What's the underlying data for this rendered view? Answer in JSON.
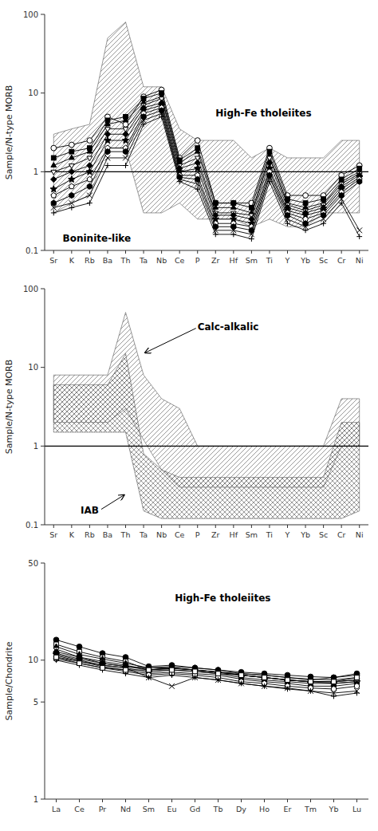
{
  "chart_data": [
    {
      "type": "line",
      "y_label": "Sample/N-type MORB",
      "categories": [
        "Sr",
        "K",
        "Rb",
        "Ba",
        "Th",
        "Ta",
        "Nb",
        "Ce",
        "P",
        "Zr",
        "Hf",
        "Sm",
        "Ti",
        "Y",
        "Yb",
        "Sc",
        "Cr",
        "Ni"
      ],
      "log": "y",
      "grid": false,
      "color": "#000000",
      "ylim": [
        0.1,
        100
      ],
      "yticks": [
        0.1,
        1,
        10,
        100
      ],
      "reference_line": 1,
      "annotations": [
        {
          "text": "High-Fe tholeiites"
        },
        {
          "text": "Boninite-like"
        }
      ],
      "series": [
        {
          "type": "band",
          "line_style": "hatch-diagonal",
          "color": "#555555",
          "values": [
            3.0,
            3.5,
            4.0,
            50.0,
            80.0,
            12.0,
            12.0,
            3.5,
            2.5,
            2.5,
            2.5,
            1.5,
            2.0,
            1.5,
            1.5,
            1.5,
            2.5,
            2.5
          ],
          "lower": [
            0.3,
            0.4,
            0.5,
            2.0,
            2.0,
            0.3,
            0.3,
            0.4,
            0.25,
            0.25,
            0.25,
            0.2,
            0.25,
            0.2,
            0.2,
            0.3,
            0.3,
            0.3
          ]
        },
        {
          "marker": "circle-open",
          "values": [
            2.0,
            2.2,
            2.5,
            5.0,
            4.0,
            9.0,
            11.0,
            1.5,
            2.5,
            0.4,
            0.4,
            0.4,
            2.0,
            0.5,
            0.5,
            0.5,
            0.9,
            1.2
          ]
        },
        {
          "marker": "square",
          "values": [
            1.5,
            1.8,
            2.0,
            4.5,
            5.0,
            8.5,
            10.0,
            1.4,
            2.0,
            0.4,
            0.4,
            0.35,
            1.8,
            0.45,
            0.4,
            0.45,
            0.8,
            1.1
          ]
        },
        {
          "marker": "triangle-up",
          "values": [
            1.2,
            1.5,
            1.8,
            4.0,
            4.5,
            7.5,
            9.0,
            1.3,
            1.8,
            0.35,
            0.35,
            0.3,
            1.6,
            0.4,
            0.35,
            0.4,
            0.75,
            1.0
          ]
        },
        {
          "marker": "triangle-down-open",
          "values": [
            1.0,
            1.2,
            1.5,
            3.5,
            3.5,
            7.0,
            8.5,
            1.2,
            1.5,
            0.3,
            0.3,
            0.28,
            1.5,
            0.38,
            0.32,
            0.38,
            0.7,
            0.95
          ]
        },
        {
          "marker": "diamond",
          "values": [
            0.8,
            1.0,
            1.2,
            3.0,
            3.0,
            6.5,
            7.5,
            1.1,
            1.3,
            0.28,
            0.28,
            0.25,
            1.3,
            0.35,
            0.3,
            0.35,
            0.65,
            0.9
          ]
        },
        {
          "marker": "star",
          "values": [
            0.6,
            0.8,
            1.0,
            2.5,
            2.5,
            6.0,
            7.0,
            1.0,
            1.1,
            0.25,
            0.25,
            0.22,
            1.1,
            0.32,
            0.28,
            0.32,
            0.6,
            0.85
          ]
        },
        {
          "marker": "pentagon-open",
          "values": [
            0.5,
            0.65,
            0.8,
            2.0,
            2.0,
            5.5,
            6.5,
            0.9,
            0.9,
            0.22,
            0.22,
            0.2,
            1.0,
            0.3,
            0.25,
            0.3,
            0.55,
            0.8
          ]
        },
        {
          "marker": "hexagon",
          "values": [
            0.4,
            0.5,
            0.65,
            1.8,
            1.8,
            5.0,
            6.0,
            0.85,
            0.8,
            0.2,
            0.2,
            0.18,
            0.9,
            0.28,
            0.22,
            0.28,
            0.5,
            0.75
          ]
        },
        {
          "marker": "x",
          "values": [
            0.35,
            0.4,
            0.5,
            1.5,
            1.5,
            4.5,
            5.5,
            0.8,
            0.7,
            0.18,
            0.18,
            0.16,
            0.85,
            0.25,
            0.2,
            0.25,
            0.45,
            0.18
          ]
        },
        {
          "marker": "plus",
          "values": [
            0.3,
            0.35,
            0.4,
            1.2,
            1.2,
            4.0,
            5.0,
            0.75,
            0.6,
            0.16,
            0.16,
            0.14,
            0.75,
            0.22,
            0.18,
            0.22,
            0.4,
            0.15
          ]
        }
      ]
    },
    {
      "type": "line",
      "y_label": "Sample/N-type MORB",
      "categories": [
        "Sr",
        "K",
        "Rb",
        "Ba",
        "Th",
        "Ta",
        "Nb",
        "Ce",
        "P",
        "Zr",
        "Hf",
        "Sm",
        "Ti",
        "Y",
        "Yb",
        "Sc",
        "Cr",
        "Ni"
      ],
      "log": "y",
      "grid": false,
      "color": "#000000",
      "ylim": [
        0.1,
        100
      ],
      "yticks": [
        0.1,
        1,
        10,
        100
      ],
      "reference_line": 1,
      "annotations": [
        {
          "text": "Calc-alkalic"
        },
        {
          "text": "IAB"
        }
      ],
      "series": [
        {
          "type": "band",
          "line_style": "hatch-diagonal",
          "color": "#555555",
          "values": [
            8.0,
            8.0,
            8.0,
            8.0,
            50.0,
            8.0,
            4.0,
            3.0,
            1.0,
            1.0,
            1.0,
            1.0,
            1.0,
            1.0,
            1.0,
            1.0,
            4.0,
            4.0
          ],
          "lower": [
            2.0,
            2.0,
            2.0,
            2.0,
            3.0,
            1.2,
            0.5,
            0.3,
            0.3,
            0.3,
            0.3,
            0.3,
            0.3,
            0.3,
            0.3,
            0.3,
            1.0,
            1.0
          ]
        },
        {
          "type": "band",
          "line_style": "hatch-cross",
          "color": "#555555",
          "values": [
            6.0,
            6.0,
            6.0,
            6.0,
            15.0,
            0.8,
            0.5,
            0.4,
            0.4,
            0.4,
            0.4,
            0.4,
            0.4,
            0.4,
            0.4,
            0.4,
            2.0,
            2.0
          ],
          "lower": [
            1.5,
            1.5,
            1.5,
            1.5,
            1.5,
            0.15,
            0.12,
            0.12,
            0.12,
            0.12,
            0.12,
            0.12,
            0.12,
            0.12,
            0.12,
            0.12,
            0.12,
            0.15
          ]
        }
      ]
    },
    {
      "type": "line",
      "y_label": "Sample/Chondrite",
      "categories": [
        "La",
        "Ce",
        "Pr",
        "Nd",
        "Sm",
        "Eu",
        "Gd",
        "Tb",
        "Dy",
        "Ho",
        "Er",
        "Tm",
        "Yb",
        "Lu"
      ],
      "log": "y",
      "grid": false,
      "color": "#000000",
      "ylim": [
        1,
        50
      ],
      "yticks": [
        1,
        5,
        10,
        50
      ],
      "annotations": [
        {
          "text": "High-Fe tholeiites"
        }
      ],
      "series": [
        {
          "marker": "circle",
          "values": [
            14.0,
            12.5,
            11.2,
            10.5,
            9.0,
            9.2,
            8.8,
            8.5,
            8.2,
            8.0,
            7.8,
            7.6,
            7.5,
            7.8
          ]
        },
        {
          "marker": "square-open",
          "values": [
            13.0,
            11.5,
            10.5,
            9.8,
            8.5,
            8.8,
            8.5,
            8.2,
            7.8,
            7.5,
            7.2,
            7.0,
            7.0,
            7.2
          ]
        },
        {
          "marker": "triangle-up",
          "values": [
            12.5,
            11.0,
            10.2,
            9.5,
            8.8,
            9.0,
            8.8,
            8.5,
            8.0,
            7.8,
            7.5,
            7.3,
            7.2,
            7.5
          ]
        },
        {
          "marker": "triangle-down-open",
          "values": [
            12.0,
            10.5,
            9.8,
            9.2,
            8.5,
            8.8,
            8.5,
            8.2,
            7.8,
            7.5,
            7.2,
            7.0,
            7.0,
            7.2
          ]
        },
        {
          "marker": "diamond",
          "values": [
            11.5,
            10.5,
            9.5,
            9.0,
            8.5,
            8.7,
            8.5,
            8.2,
            7.8,
            7.5,
            7.2,
            7.0,
            6.8,
            7.0
          ]
        },
        {
          "marker": "star-open",
          "values": [
            11.0,
            10.0,
            9.2,
            8.8,
            8.2,
            8.5,
            8.3,
            8.0,
            7.5,
            7.2,
            7.0,
            6.8,
            6.8,
            7.0
          ]
        },
        {
          "marker": "pentagon",
          "values": [
            10.5,
            9.8,
            9.0,
            8.5,
            8.0,
            8.2,
            8.0,
            7.8,
            7.3,
            7.0,
            6.8,
            6.5,
            6.5,
            6.8
          ]
        },
        {
          "marker": "hexagon-open",
          "values": [
            10.2,
            9.5,
            8.8,
            8.3,
            7.8,
            8.0,
            7.8,
            7.5,
            7.0,
            6.8,
            6.5,
            6.3,
            6.2,
            6.5
          ]
        },
        {
          "marker": "x",
          "values": [
            10.8,
            9.8,
            9.2,
            8.8,
            7.5,
            6.5,
            7.5,
            7.2,
            6.8,
            6.5,
            6.3,
            6.0,
            5.8,
            6.0
          ]
        },
        {
          "marker": "plus",
          "values": [
            10.0,
            9.2,
            8.5,
            8.0,
            7.5,
            7.8,
            7.5,
            7.2,
            6.8,
            6.5,
            6.2,
            6.0,
            5.5,
            5.8
          ]
        },
        {
          "marker": "circle",
          "values": [
            11.2,
            10.2,
            9.5,
            9.0,
            8.8,
            8.8,
            8.5,
            8.2,
            8.0,
            7.8,
            7.5,
            7.2,
            7.5,
            8.0
          ]
        },
        {
          "marker": "square-open",
          "values": [
            10.5,
            9.5,
            8.8,
            8.5,
            8.5,
            8.5,
            8.3,
            8.0,
            7.8,
            7.5,
            7.2,
            7.0,
            7.0,
            7.5
          ]
        }
      ]
    }
  ]
}
